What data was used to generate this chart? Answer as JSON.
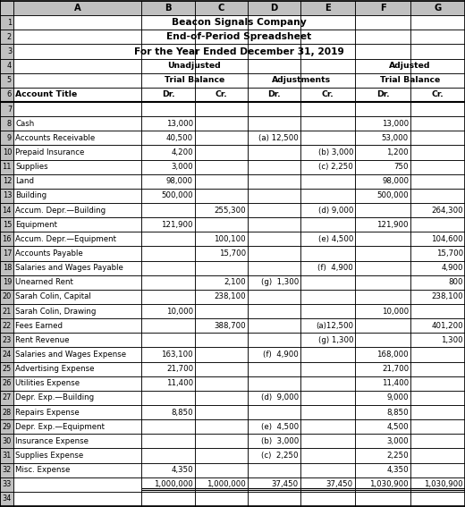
{
  "title1": "Beacon Signals Company",
  "title2": "End-of-Period Spreadsheet",
  "title3": "For the Year Ended December 31, 2019",
  "rows": [
    {
      "row": 1,
      "account": "",
      "b": "",
      "c": "",
      "d": "",
      "e": "",
      "f": "",
      "g": ""
    },
    {
      "row": 2,
      "account": "",
      "b": "",
      "c": "",
      "d": "",
      "e": "",
      "f": "",
      "g": ""
    },
    {
      "row": 3,
      "account": "",
      "b": "",
      "c": "",
      "d": "",
      "e": "",
      "f": "",
      "g": ""
    },
    {
      "row": 4,
      "account": "",
      "b": "",
      "c": "",
      "d": "",
      "e": "",
      "f": "",
      "g": ""
    },
    {
      "row": 5,
      "account": "",
      "b": "",
      "c": "",
      "d": "",
      "e": "",
      "f": "",
      "g": ""
    },
    {
      "row": 6,
      "account": "Account Title",
      "b": "Dr.",
      "c": "Cr.",
      "d": "Dr.",
      "e": "Cr.",
      "f": "Dr.",
      "g": "Cr."
    },
    {
      "row": 7,
      "account": "",
      "b": "",
      "c": "",
      "d": "",
      "e": "",
      "f": "",
      "g": ""
    },
    {
      "row": 8,
      "account": "Cash",
      "b": "13,000",
      "c": "",
      "d": "",
      "e": "",
      "f": "13,000",
      "g": ""
    },
    {
      "row": 9,
      "account": "Accounts Receivable",
      "b": "40,500",
      "c": "",
      "d": "(a) 12,500",
      "e": "",
      "f": "53,000",
      "g": ""
    },
    {
      "row": 10,
      "account": "Prepaid Insurance",
      "b": "4,200",
      "c": "",
      "d": "",
      "e": "(b) 3,000",
      "f": "1,200",
      "g": ""
    },
    {
      "row": 11,
      "account": "Supplies",
      "b": "3,000",
      "c": "",
      "d": "",
      "e": "(c) 2,250",
      "f": "750",
      "g": ""
    },
    {
      "row": 12,
      "account": "Land",
      "b": "98,000",
      "c": "",
      "d": "",
      "e": "",
      "f": "98,000",
      "g": ""
    },
    {
      "row": 13,
      "account": "Building",
      "b": "500,000",
      "c": "",
      "d": "",
      "e": "",
      "f": "500,000",
      "g": ""
    },
    {
      "row": 14,
      "account": "Accum. Depr.—Building",
      "b": "",
      "c": "255,300",
      "d": "",
      "e": "(d) 9,000",
      "f": "",
      "g": "264,300"
    },
    {
      "row": 15,
      "account": "Equipment",
      "b": "121,900",
      "c": "",
      "d": "",
      "e": "",
      "f": "121,900",
      "g": ""
    },
    {
      "row": 16,
      "account": "Accum. Depr.—Equipment",
      "b": "",
      "c": "100,100",
      "d": "",
      "e": "(e) 4,500",
      "f": "",
      "g": "104,600"
    },
    {
      "row": 17,
      "account": "Accounts Payable",
      "b": "",
      "c": "15,700",
      "d": "",
      "e": "",
      "f": "",
      "g": "15,700"
    },
    {
      "row": 18,
      "account": "Salaries and Wages Payable",
      "b": "",
      "c": "",
      "d": "",
      "e": "(f)  4,900",
      "f": "",
      "g": "4,900"
    },
    {
      "row": 19,
      "account": "Unearned Rent",
      "b": "",
      "c": "2,100",
      "d": "(g)  1,300",
      "e": "",
      "f": "",
      "g": "800"
    },
    {
      "row": 20,
      "account": "Sarah Colin, Capital",
      "b": "",
      "c": "238,100",
      "d": "",
      "e": "",
      "f": "",
      "g": "238,100"
    },
    {
      "row": 21,
      "account": "Sarah Colin, Drawing",
      "b": "10,000",
      "c": "",
      "d": "",
      "e": "",
      "f": "10,000",
      "g": ""
    },
    {
      "row": 22,
      "account": "Fees Earned",
      "b": "",
      "c": "388,700",
      "d": "",
      "e": "(a)12,500",
      "f": "",
      "g": "401,200"
    },
    {
      "row": 23,
      "account": "Rent Revenue",
      "b": "",
      "c": "",
      "d": "",
      "e": "(g) 1,300",
      "f": "",
      "g": "1,300"
    },
    {
      "row": 24,
      "account": "Salaries and Wages Expense",
      "b": "163,100",
      "c": "",
      "d": "(f)  4,900",
      "e": "",
      "f": "168,000",
      "g": ""
    },
    {
      "row": 25,
      "account": "Advertising Expense",
      "b": "21,700",
      "c": "",
      "d": "",
      "e": "",
      "f": "21,700",
      "g": ""
    },
    {
      "row": 26,
      "account": "Utilities Expense",
      "b": "11,400",
      "c": "",
      "d": "",
      "e": "",
      "f": "11,400",
      "g": ""
    },
    {
      "row": 27,
      "account": "Depr. Exp.—Building",
      "b": "",
      "c": "",
      "d": "(d)  9,000",
      "e": "",
      "f": "9,000",
      "g": ""
    },
    {
      "row": 28,
      "account": "Repairs Expense",
      "b": "8,850",
      "c": "",
      "d": "",
      "e": "",
      "f": "8,850",
      "g": ""
    },
    {
      "row": 29,
      "account": "Depr. Exp.—Equipment",
      "b": "",
      "c": "",
      "d": "(e)  4,500",
      "e": "",
      "f": "4,500",
      "g": ""
    },
    {
      "row": 30,
      "account": "Insurance Expense",
      "b": "",
      "c": "",
      "d": "(b)  3,000",
      "e": "",
      "f": "3,000",
      "g": ""
    },
    {
      "row": 31,
      "account": "Supplies Expense",
      "b": "",
      "c": "",
      "d": "(c)  2,250",
      "e": "",
      "f": "2,250",
      "g": ""
    },
    {
      "row": 32,
      "account": "Misc. Expense",
      "b": "4,350",
      "c": "",
      "d": "",
      "e": "",
      "f": "4,350",
      "g": ""
    },
    {
      "row": 33,
      "account": "",
      "b": "1,000,000",
      "c": "1,000,000",
      "d": "37,450",
      "e": "37,450",
      "f": "1,030,900",
      "g": "1,030,900"
    },
    {
      "row": 34,
      "account": "",
      "b": "",
      "c": "",
      "d": "",
      "e": "",
      "f": "",
      "g": ""
    }
  ],
  "bg_header_col": "#c0c0c0",
  "bg_white": "#ffffff",
  "font_size": 6.2,
  "bold_rows": [
    6
  ],
  "total_row": 33
}
